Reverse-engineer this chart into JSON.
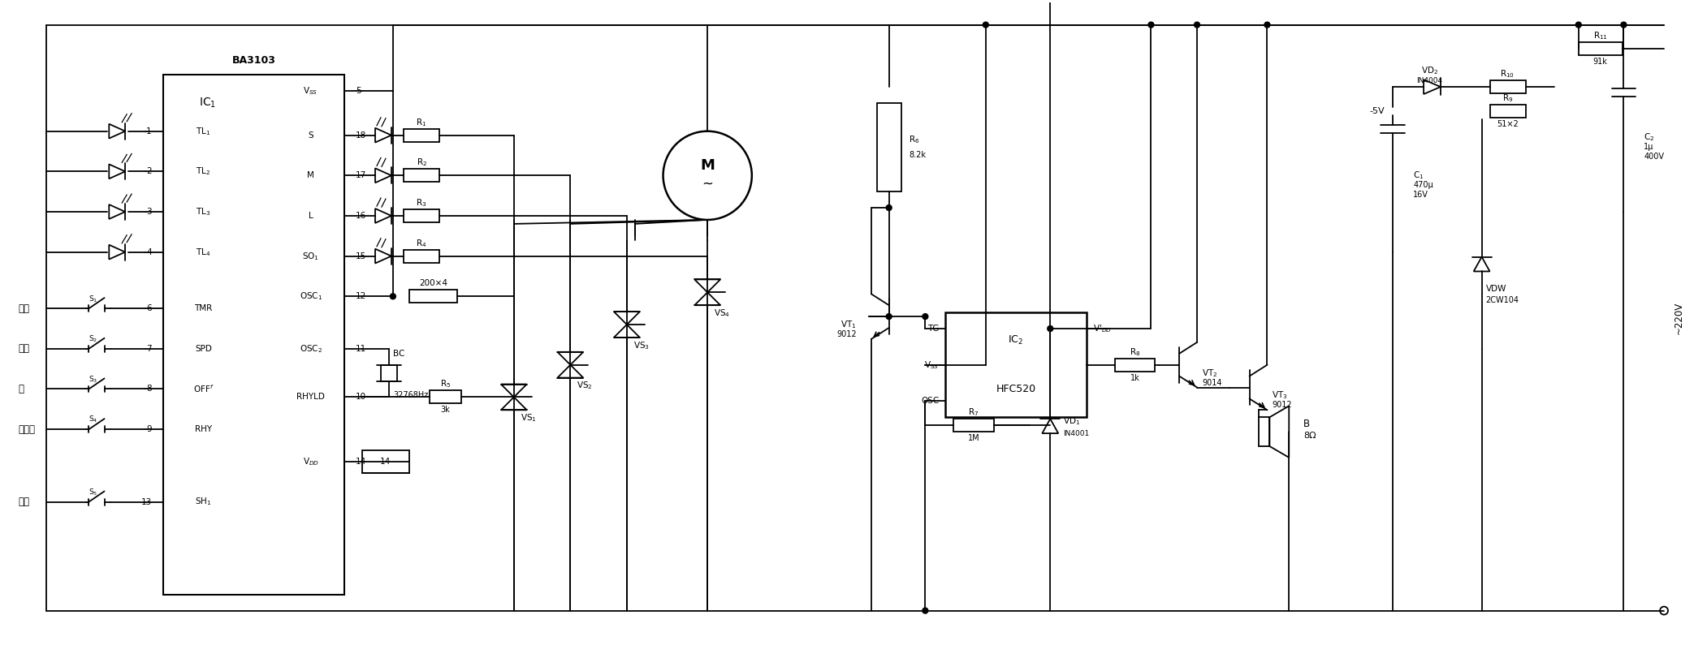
{
  "figsize": [
    20.86,
    8.11
  ],
  "dpi": 100,
  "bg": "#ffffff",
  "lc": "black",
  "lw": 1.3,
  "ic1_label": "BA3103",
  "ic1_sub": "IC₁",
  "ic2_label": "HFC520",
  "ic2_sub": "IC₂",
  "motor_label": "M",
  "vss_label": "Vₛₛ",
  "vdd_label": "Vₑₑ",
  "ac_label": "~220V",
  "minus5v": "-5V",
  "components": {
    "R1": "R₁",
    "R2": "R₂",
    "R3": "R₃",
    "R4": "R₄",
    "R5": "R₅",
    "R6": "R₆",
    "R7": "R₇",
    "R8": "R₈",
    "R9": "R₉",
    "R10": "R₁₀",
    "R11": "R₁₁",
    "C1": "C₁",
    "C2": "C₂",
    "VT1": "VT₁",
    "VT2": "VT₂",
    "VT3": "VT₃",
    "VS1": "VS₁",
    "VS2": "VS₂",
    "VS3": "VS₃",
    "VS4": "VS₄",
    "VD1": "VD₁",
    "VD2": "VD₂",
    "TL1": "TL₁",
    "TL2": "TL₂",
    "TL3": "TL₃",
    "TL4": "TL₄"
  }
}
